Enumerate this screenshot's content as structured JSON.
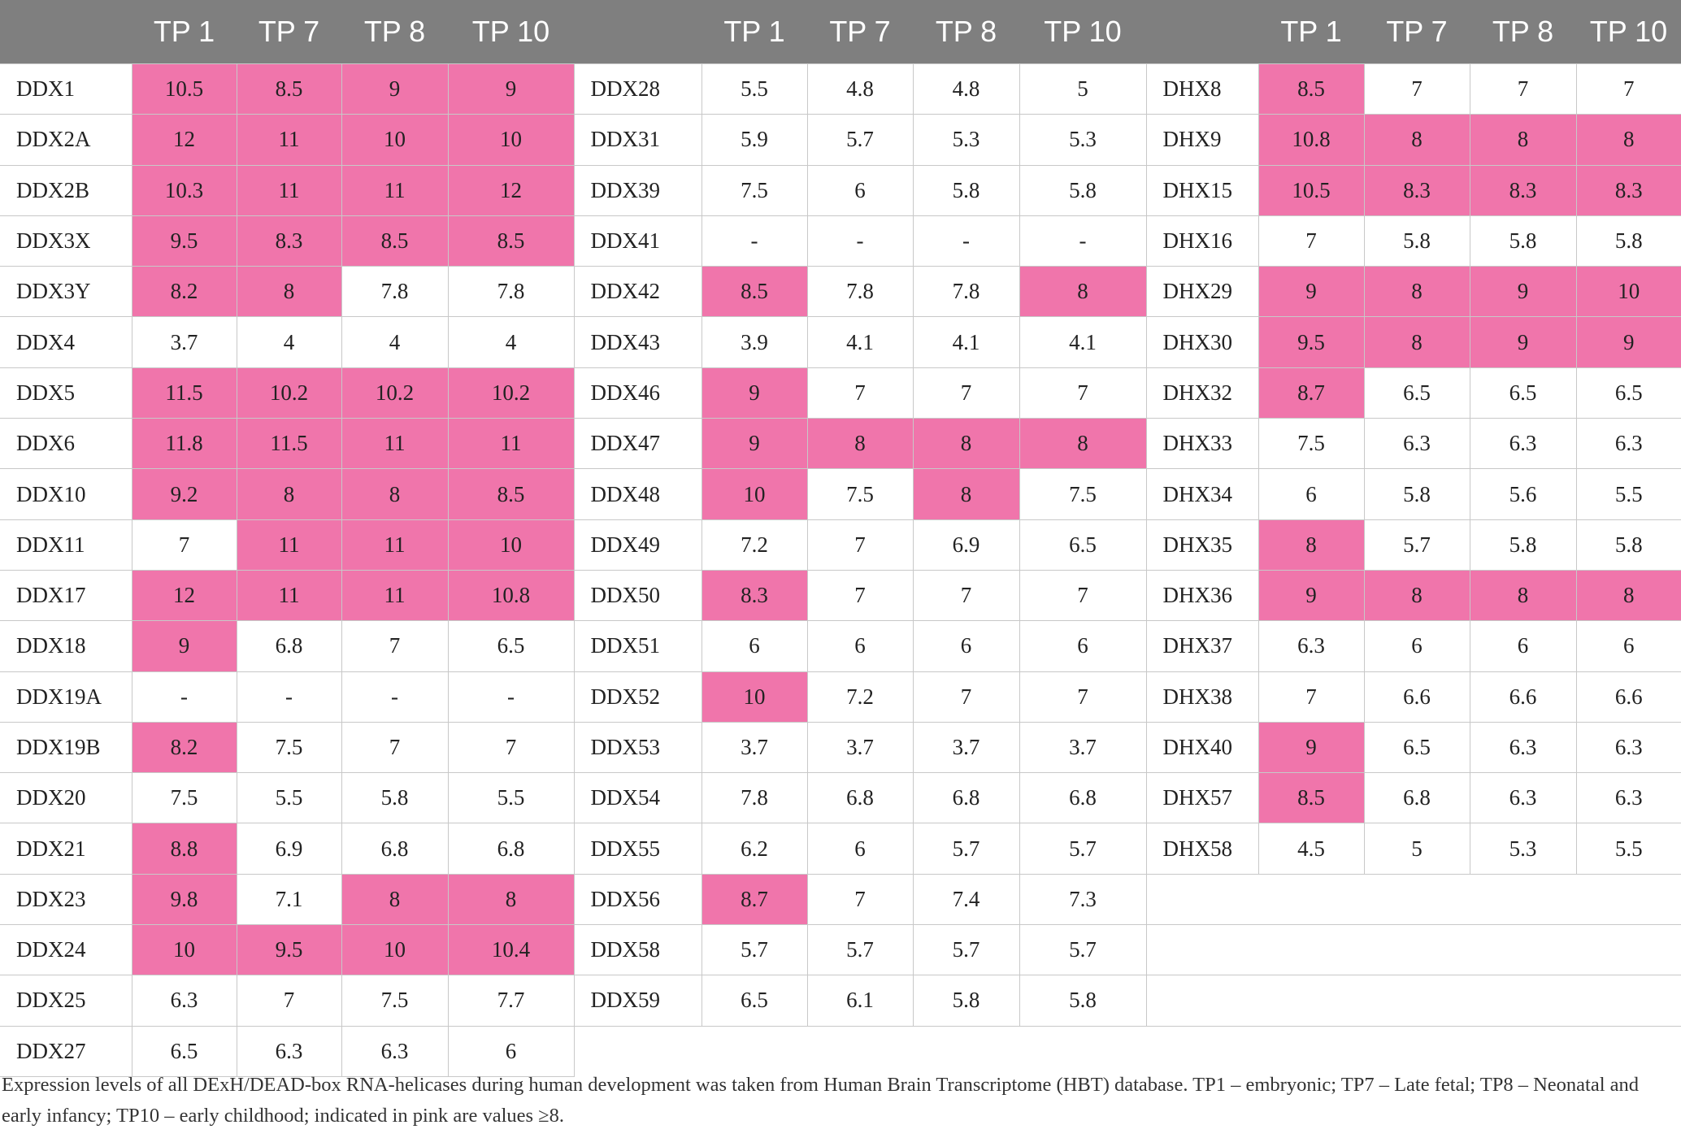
{
  "table": {
    "threshold": 8,
    "highlight_color": "#f075ab",
    "header_color": "#7f7f7f",
    "header": [
      "",
      "TP 1",
      "TP 7",
      "TP 8",
      "TP 10"
    ],
    "groups": [
      [
        [
          "DDX1",
          "10.5",
          "8.5",
          "9",
          "9"
        ],
        [
          "DDX2A",
          "12",
          "11",
          "10",
          "10"
        ],
        [
          "DDX2B",
          "10.3",
          "11",
          "11",
          "12"
        ],
        [
          "DDX3X",
          "9.5",
          "8.3",
          "8.5",
          "8.5"
        ],
        [
          "DDX3Y",
          "8.2",
          "8",
          "7.8",
          "7.8"
        ],
        [
          "DDX4",
          "3.7",
          "4",
          "4",
          "4"
        ],
        [
          "DDX5",
          "11.5",
          "10.2",
          "10.2",
          "10.2"
        ],
        [
          "DDX6",
          "11.8",
          "11.5",
          "11",
          "11"
        ],
        [
          "DDX10",
          "9.2",
          "8",
          "8",
          "8.5"
        ],
        [
          "DDX11",
          "7",
          "11",
          "11",
          "10"
        ],
        [
          "DDX17",
          "12",
          "11",
          "11",
          "10.8"
        ],
        [
          "DDX18",
          "9",
          "6.8",
          "7",
          "6.5"
        ],
        [
          "DDX19A",
          "-",
          "-",
          "-",
          "-"
        ],
        [
          "DDX19B",
          "8.2",
          "7.5",
          "7",
          "7"
        ],
        [
          "DDX20",
          "7.5",
          "5.5",
          "5.8",
          "5.5"
        ],
        [
          "DDX21",
          "8.8",
          "6.9",
          "6.8",
          "6.8"
        ],
        [
          "DDX23",
          "9.8",
          "7.1",
          "8",
          "8"
        ],
        [
          "DDX24",
          "10",
          "9.5",
          "10",
          "10.4"
        ],
        [
          "DDX25",
          "6.3",
          "7",
          "7.5",
          "7.7"
        ],
        [
          "DDX27",
          "6.5",
          "6.3",
          "6.3",
          "6"
        ]
      ],
      [
        [
          "DDX28",
          "5.5",
          "4.8",
          "4.8",
          "5"
        ],
        [
          "DDX31",
          "5.9",
          "5.7",
          "5.3",
          "5.3"
        ],
        [
          "DDX39",
          "7.5",
          "6",
          "5.8",
          "5.8"
        ],
        [
          "DDX41",
          "-",
          "-",
          "-",
          "-"
        ],
        [
          "DDX42",
          "8.5",
          "7.8",
          "7.8",
          "8"
        ],
        [
          "DDX43",
          "3.9",
          "4.1",
          "4.1",
          "4.1"
        ],
        [
          "DDX46",
          "9",
          "7",
          "7",
          "7"
        ],
        [
          "DDX47",
          "9",
          "8",
          "8",
          "8"
        ],
        [
          "DDX48",
          "10",
          "7.5",
          "8",
          "7.5"
        ],
        [
          "DDX49",
          "7.2",
          "7",
          "6.9",
          "6.5"
        ],
        [
          "DDX50",
          "8.3",
          "7",
          "7",
          "7"
        ],
        [
          "DDX51",
          "6",
          "6",
          "6",
          "6"
        ],
        [
          "DDX52",
          "10",
          "7.2",
          "7",
          "7"
        ],
        [
          "DDX53",
          "3.7",
          "3.7",
          "3.7",
          "3.7"
        ],
        [
          "DDX54",
          "7.8",
          "6.8",
          "6.8",
          "6.8"
        ],
        [
          "DDX55",
          "6.2",
          "6",
          "5.7",
          "5.7"
        ],
        [
          "DDX56",
          "8.7",
          "7",
          "7.4",
          "7.3"
        ],
        [
          "DDX58",
          "5.7",
          "5.7",
          "5.7",
          "5.7"
        ],
        [
          "DDX59",
          "6.5",
          "6.1",
          "5.8",
          "5.8"
        ]
      ],
      [
        [
          "DHX8",
          "8.5",
          "7",
          "7",
          "7"
        ],
        [
          "DHX9",
          "10.8",
          "8",
          "8",
          "8"
        ],
        [
          "DHX15",
          "10.5",
          "8.3",
          "8.3",
          "8.3"
        ],
        [
          "DHX16",
          "7",
          "5.8",
          "5.8",
          "5.8"
        ],
        [
          "DHX29",
          "9",
          "8",
          "9",
          "10"
        ],
        [
          "DHX30",
          "9.5",
          "8",
          "9",
          "9"
        ],
        [
          "DHX32",
          "8.7",
          "6.5",
          "6.5",
          "6.5"
        ],
        [
          "DHX33",
          "7.5",
          "6.3",
          "6.3",
          "6.3"
        ],
        [
          "DHX34",
          "6",
          "5.8",
          "5.6",
          "5.5"
        ],
        [
          "DHX35",
          "8",
          "5.7",
          "5.8",
          "5.8"
        ],
        [
          "DHX36",
          "9",
          "8",
          "8",
          "8"
        ],
        [
          "DHX37",
          "6.3",
          "6",
          "6",
          "6"
        ],
        [
          "DHX38",
          "7",
          "6.6",
          "6.6",
          "6.6"
        ],
        [
          "DHX40",
          "9",
          "6.5",
          "6.3",
          "6.3"
        ],
        [
          "DHX57",
          "8.5",
          "6.8",
          "6.3",
          "6.3"
        ],
        [
          "DHX58",
          "4.5",
          "5",
          "5.3",
          "5.5"
        ]
      ]
    ]
  },
  "caption": "Expression levels of all DExH/DEAD-box RNA-helicases during human development was taken from Human Brain Transcriptome (HBT) database. TP1 – embryonic; TP7 – Late fetal; TP8 – Neonatal and early infancy; TP10 – early childhood; indicated in pink are values ≥8."
}
